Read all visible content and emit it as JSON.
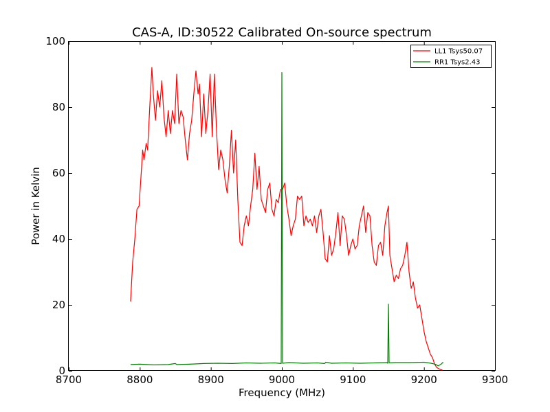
{
  "chart_data": {
    "type": "line",
    "title": "CAS-A, ID:30522 Calibrated On-source spectrum",
    "xlabel": "Frequency (MHz)",
    "ylabel": "Power in Kelvin",
    "xlim": [
      8700,
      9300
    ],
    "ylim": [
      0,
      100
    ],
    "xticks": [
      8700,
      8800,
      8900,
      9000,
      9100,
      9200,
      9300
    ],
    "yticks": [
      0,
      20,
      40,
      60,
      80,
      100
    ],
    "grid": false,
    "legend_position": "top-right",
    "series": [
      {
        "name": "LL1 Tsys50.07",
        "color": "#ff0000",
        "points": [
          [
            8787,
            21
          ],
          [
            8790,
            33
          ],
          [
            8793,
            40
          ],
          [
            8796,
            49
          ],
          [
            8799,
            50
          ],
          [
            8802,
            60
          ],
          [
            8804,
            67
          ],
          [
            8806,
            64
          ],
          [
            8809,
            69
          ],
          [
            8811,
            67
          ],
          [
            8814,
            80
          ],
          [
            8817,
            92
          ],
          [
            8819,
            84
          ],
          [
            8822,
            76
          ],
          [
            8825,
            85
          ],
          [
            8828,
            80
          ],
          [
            8831,
            88
          ],
          [
            8834,
            77
          ],
          [
            8837,
            71
          ],
          [
            8840,
            79
          ],
          [
            8843,
            72
          ],
          [
            8846,
            79
          ],
          [
            8849,
            75
          ],
          [
            8852,
            90
          ],
          [
            8855,
            75
          ],
          [
            8858,
            79
          ],
          [
            8861,
            77
          ],
          [
            8864,
            70
          ],
          [
            8867,
            64
          ],
          [
            8870,
            72
          ],
          [
            8873,
            76
          ],
          [
            8876,
            84
          ],
          [
            8879,
            91
          ],
          [
            8882,
            84
          ],
          [
            8884,
            87
          ],
          [
            8887,
            71
          ],
          [
            8890,
            84
          ],
          [
            8893,
            72
          ],
          [
            8896,
            79
          ],
          [
            8899,
            90
          ],
          [
            8902,
            71
          ],
          [
            8905,
            90
          ],
          [
            8908,
            73
          ],
          [
            8911,
            61
          ],
          [
            8914,
            67
          ],
          [
            8917,
            64
          ],
          [
            8920,
            58
          ],
          [
            8923,
            54
          ],
          [
            8926,
            62
          ],
          [
            8929,
            73
          ],
          [
            8932,
            60
          ],
          [
            8935,
            70
          ],
          [
            8938,
            52
          ],
          [
            8941,
            39
          ],
          [
            8944,
            38
          ],
          [
            8947,
            44
          ],
          [
            8950,
            47
          ],
          [
            8953,
            44
          ],
          [
            8956,
            50
          ],
          [
            8959,
            55
          ],
          [
            8962,
            66
          ],
          [
            8965,
            55
          ],
          [
            8968,
            62
          ],
          [
            8971,
            52
          ],
          [
            8974,
            50
          ],
          [
            8977,
            48
          ],
          [
            8980,
            55
          ],
          [
            8983,
            57
          ],
          [
            8986,
            49
          ],
          [
            8989,
            47
          ],
          [
            8992,
            52
          ],
          [
            8995,
            51
          ],
          [
            8998,
            55
          ],
          [
            9001,
            55
          ],
          [
            9004,
            57
          ],
          [
            9007,
            50
          ],
          [
            9010,
            46
          ],
          [
            9013,
            41
          ],
          [
            9016,
            44
          ],
          [
            9019,
            46
          ],
          [
            9022,
            53
          ],
          [
            9025,
            52
          ],
          [
            9028,
            53
          ],
          [
            9031,
            44
          ],
          [
            9034,
            47
          ],
          [
            9037,
            45
          ],
          [
            9040,
            46
          ],
          [
            9043,
            44
          ],
          [
            9046,
            47
          ],
          [
            9049,
            42
          ],
          [
            9052,
            47
          ],
          [
            9055,
            49
          ],
          [
            9058,
            42
          ],
          [
            9061,
            34
          ],
          [
            9064,
            33
          ],
          [
            9067,
            41
          ],
          [
            9070,
            35
          ],
          [
            9073,
            37
          ],
          [
            9076,
            42
          ],
          [
            9079,
            48
          ],
          [
            9082,
            38
          ],
          [
            9085,
            47
          ],
          [
            9088,
            46
          ],
          [
            9091,
            41
          ],
          [
            9094,
            35
          ],
          [
            9097,
            38
          ],
          [
            9100,
            40
          ],
          [
            9103,
            37
          ],
          [
            9106,
            38
          ],
          [
            9109,
            44
          ],
          [
            9112,
            47
          ],
          [
            9115,
            50
          ],
          [
            9118,
            42
          ],
          [
            9121,
            48
          ],
          [
            9124,
            47
          ],
          [
            9127,
            38
          ],
          [
            9130,
            33
          ],
          [
            9133,
            32
          ],
          [
            9136,
            38
          ],
          [
            9139,
            39
          ],
          [
            9142,
            35
          ],
          [
            9145,
            44
          ],
          [
            9148,
            48
          ],
          [
            9150,
            50
          ],
          [
            9152,
            35
          ],
          [
            9155,
            31
          ],
          [
            9158,
            27
          ],
          [
            9161,
            29
          ],
          [
            9164,
            28
          ],
          [
            9167,
            31
          ],
          [
            9170,
            32
          ],
          [
            9173,
            35
          ],
          [
            9176,
            39
          ],
          [
            9179,
            30
          ],
          [
            9182,
            25
          ],
          [
            9185,
            27
          ],
          [
            9188,
            22
          ],
          [
            9191,
            19
          ],
          [
            9194,
            20
          ],
          [
            9197,
            16
          ],
          [
            9200,
            12
          ],
          [
            9203,
            9
          ],
          [
            9206,
            7
          ],
          [
            9209,
            5
          ],
          [
            9212,
            4
          ],
          [
            9215,
            2
          ],
          [
            9218,
            1
          ],
          [
            9222,
            0.5
          ],
          [
            9226,
            0.2
          ]
        ]
      },
      {
        "name": "RR1 Tsys2.43",
        "color": "#008000",
        "points": [
          [
            8787,
            1.9
          ],
          [
            8800,
            2.0
          ],
          [
            8820,
            1.8
          ],
          [
            8840,
            1.9
          ],
          [
            8850,
            2.2
          ],
          [
            8852,
            1.9
          ],
          [
            8870,
            2.0
          ],
          [
            8890,
            2.2
          ],
          [
            8910,
            2.3
          ],
          [
            8930,
            2.2
          ],
          [
            8950,
            2.4
          ],
          [
            8970,
            2.3
          ],
          [
            8990,
            2.4
          ],
          [
            8999,
            2.2
          ],
          [
            9000,
            90.5
          ],
          [
            9001,
            2.3
          ],
          [
            9010,
            2.5
          ],
          [
            9030,
            2.3
          ],
          [
            9050,
            2.4
          ],
          [
            9060,
            2.2
          ],
          [
            9062,
            2.6
          ],
          [
            9070,
            2.3
          ],
          [
            9090,
            2.4
          ],
          [
            9110,
            2.3
          ],
          [
            9130,
            2.4
          ],
          [
            9148,
            2.5
          ],
          [
            9149,
            2.3
          ],
          [
            9150,
            20.2
          ],
          [
            9151,
            2.4
          ],
          [
            9160,
            2.5
          ],
          [
            9180,
            2.5
          ],
          [
            9200,
            2.6
          ],
          [
            9210,
            2.3
          ],
          [
            9216,
            2.0
          ],
          [
            9220,
            1.5
          ],
          [
            9224,
            2.0
          ],
          [
            9227,
            2.6
          ]
        ]
      }
    ]
  }
}
